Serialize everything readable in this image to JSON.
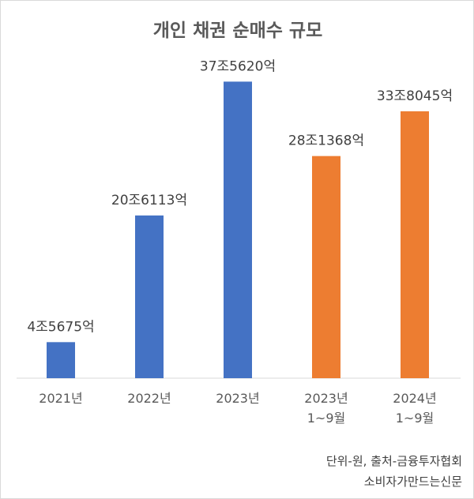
{
  "chart_data": {
    "type": "bar",
    "title": "개인 채권 순매수 규모",
    "categories": [
      [
        "2021년"
      ],
      [
        "2022년"
      ],
      [
        "2023년"
      ],
      [
        "2023년",
        "1~9월"
      ],
      [
        "2024년",
        "1~9월"
      ]
    ],
    "values": [
      4.5675,
      20.6113,
      37.562,
      28.1368,
      33.8045
    ],
    "data_labels": [
      "4조5675억",
      "20조6113억",
      "37조5620억",
      "28조1368억",
      "33조8045억"
    ],
    "bar_colors": [
      "#4472c4",
      "#4472c4",
      "#4472c4",
      "#ed7d31",
      "#ed7d31"
    ],
    "xlabel": "",
    "ylabel": "",
    "ylim": [
      0,
      40
    ],
    "grid": false,
    "legend": "none"
  },
  "footer": {
    "note": "단위-원, 출처-금융투자협회",
    "source": "소비자가만드는신문"
  }
}
